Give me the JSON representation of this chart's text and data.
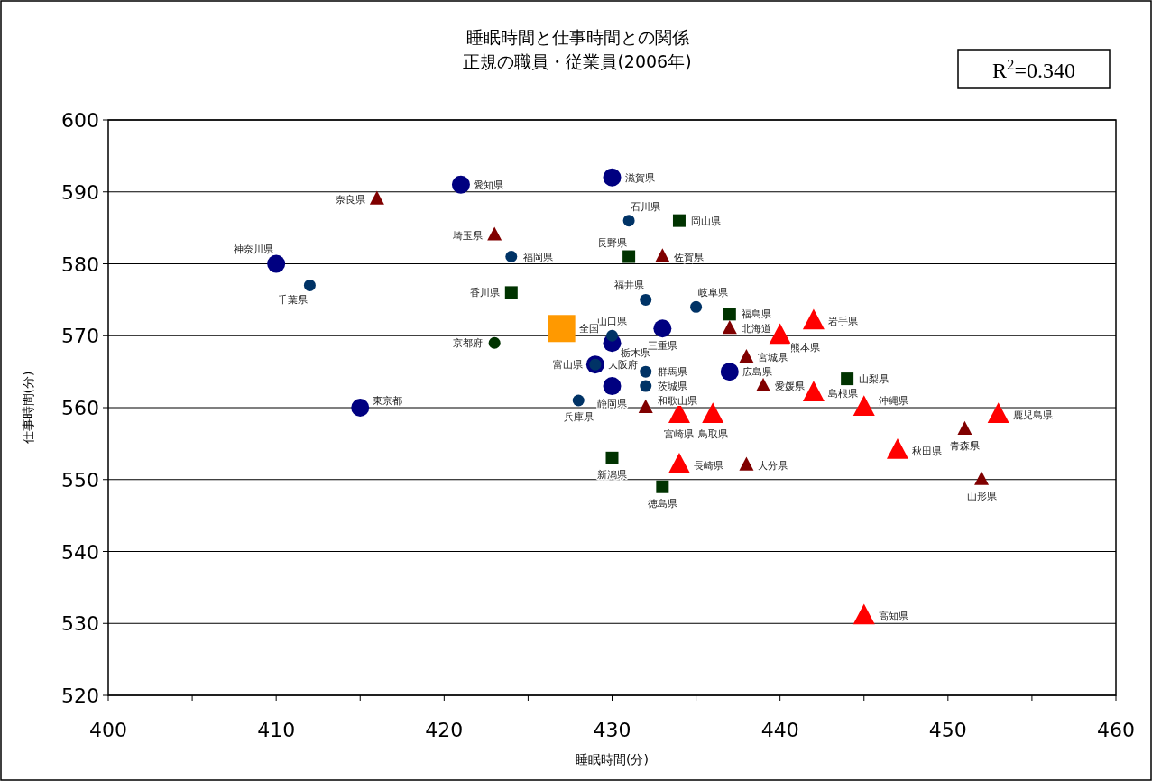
{
  "chart_data": {
    "type": "scatter",
    "title": "睡眠時間と仕事時間との関係",
    "subtitle": "正規の職員・従業員(2006年)",
    "xlabel": "睡眠時間(分)",
    "ylabel": "仕事時間(分)",
    "xlim": [
      400,
      460
    ],
    "ylim": [
      520,
      600
    ],
    "xticks": [
      400,
      {
        "value": 405,
        "label": null
      },
      410,
      {
        "value": 415,
        "label": null
      },
      420,
      {
        "value": 425,
        "label": null
      },
      430,
      {
        "value": 435,
        "label": null
      },
      440,
      {
        "value": 445,
        "label": null
      },
      450,
      {
        "value": 455,
        "label": null
      },
      460
    ],
    "yticks": [
      520,
      530,
      540,
      550,
      560,
      570,
      580,
      590,
      600
    ],
    "grid": "y",
    "series": [
      {
        "color": "#000080",
        "marker": "circle",
        "x": [
          421,
          430,
          410,
          415,
          430,
          433,
          429,
          430,
          437
        ],
        "values": [
          591,
          592,
          580,
          560,
          569,
          571,
          566,
          563,
          565
        ]
      },
      {
        "color": "#003366",
        "marker": "circle",
        "x": [
          431,
          424,
          412,
          432,
          435,
          430,
          432,
          432,
          428,
          429
        ],
        "values": [
          586,
          581,
          577,
          575,
          574,
          570,
          565,
          563,
          561,
          566
        ]
      },
      {
        "color": "#003300",
        "marker": "circle",
        "x": [
          423
        ],
        "values": [
          569
        ]
      },
      {
        "color": "#003300",
        "marker": "square",
        "x": [
          434,
          431,
          424,
          437,
          444,
          430,
          433
        ],
        "values": [
          586,
          581,
          576,
          573,
          564,
          553,
          549
        ]
      },
      {
        "color": "#800000",
        "marker": "triangle",
        "x": [
          416,
          423,
          433,
          437,
          438,
          439,
          432,
          438,
          451,
          452
        ],
        "values": [
          589,
          584,
          581,
          571,
          567,
          563,
          560,
          552,
          557,
          550
        ]
      },
      {
        "color": "#ff0000",
        "marker": "triangle",
        "x": [
          442,
          440,
          442,
          445,
          434,
          436,
          434,
          447,
          453,
          445
        ],
        "values": [
          572,
          570,
          562,
          560,
          559,
          559,
          552,
          554,
          559,
          531
        ]
      },
      {
        "color": "#ff9900",
        "marker": "square",
        "x": [
          427
        ],
        "values": [
          571
        ]
      }
    ],
    "annotations": [
      {
        "text": "愛知県",
        "x": 421,
        "y": 591
      },
      {
        "text": "滋賀県",
        "x": 430,
        "y": 592
      },
      {
        "text": "神奈川県",
        "x": 410,
        "y": 580
      },
      {
        "text": "東京都",
        "x": 415,
        "y": 560
      },
      {
        "text": "栃木県",
        "x": 430,
        "y": 569
      },
      {
        "text": "三重県",
        "x": 433,
        "y": 571
      },
      {
        "text": "大阪府",
        "x": 429,
        "y": 566
      },
      {
        "text": "静岡県",
        "x": 430,
        "y": 563
      },
      {
        "text": "広島県",
        "x": 437,
        "y": 565
      },
      {
        "text": "石川県",
        "x": 431,
        "y": 586
      },
      {
        "text": "福岡県",
        "x": 424,
        "y": 581
      },
      {
        "text": "千葉県",
        "x": 412,
        "y": 577
      },
      {
        "text": "福井県",
        "x": 432,
        "y": 575
      },
      {
        "text": "岐阜県",
        "x": 435,
        "y": 574
      },
      {
        "text": "山口県",
        "x": 430,
        "y": 570
      },
      {
        "text": "群馬県",
        "x": 432,
        "y": 565
      },
      {
        "text": "茨城県",
        "x": 432,
        "y": 563
      },
      {
        "text": "兵庫県",
        "x": 428,
        "y": 561
      },
      {
        "text": "富山県",
        "x": 429,
        "y": 566
      },
      {
        "text": "京都府",
        "x": 423,
        "y": 569
      },
      {
        "text": "岡山県",
        "x": 434,
        "y": 586
      },
      {
        "text": "長野県",
        "x": 431,
        "y": 581
      },
      {
        "text": "香川県",
        "x": 424,
        "y": 576
      },
      {
        "text": "福島県",
        "x": 437,
        "y": 573
      },
      {
        "text": "山梨県",
        "x": 444,
        "y": 564
      },
      {
        "text": "新潟県",
        "x": 430,
        "y": 553
      },
      {
        "text": "徳島県",
        "x": 433,
        "y": 549
      },
      {
        "text": "奈良県",
        "x": 416,
        "y": 589
      },
      {
        "text": "埼玉県",
        "x": 423,
        "y": 584
      },
      {
        "text": "佐賀県",
        "x": 433,
        "y": 581
      },
      {
        "text": "北海道",
        "x": 437,
        "y": 571
      },
      {
        "text": "宮城県",
        "x": 438,
        "y": 567
      },
      {
        "text": "愛媛県",
        "x": 439,
        "y": 563
      },
      {
        "text": "和歌山県",
        "x": 432,
        "y": 560
      },
      {
        "text": "大分県",
        "x": 438,
        "y": 552
      },
      {
        "text": "青森県",
        "x": 451,
        "y": 557
      },
      {
        "text": "山形県",
        "x": 452,
        "y": 550
      },
      {
        "text": "岩手県",
        "x": 442,
        "y": 572
      },
      {
        "text": "熊本県",
        "x": 440,
        "y": 570
      },
      {
        "text": "島根県",
        "x": 442,
        "y": 562
      },
      {
        "text": "沖縄県",
        "x": 445,
        "y": 560
      },
      {
        "text": "宮崎県",
        "x": 434,
        "y": 559
      },
      {
        "text": "鳥取県",
        "x": 436,
        "y": 559
      },
      {
        "text": "長崎県",
        "x": 434,
        "y": 552
      },
      {
        "text": "秋田県",
        "x": 447,
        "y": 554
      },
      {
        "text": "鹿児島県",
        "x": 453,
        "y": 559
      },
      {
        "text": "高知県",
        "x": 445,
        "y": 531
      },
      {
        "text": "全国",
        "x": 427,
        "y": 571
      },
      "R$^{2}$=0.340"
    ]
  }
}
